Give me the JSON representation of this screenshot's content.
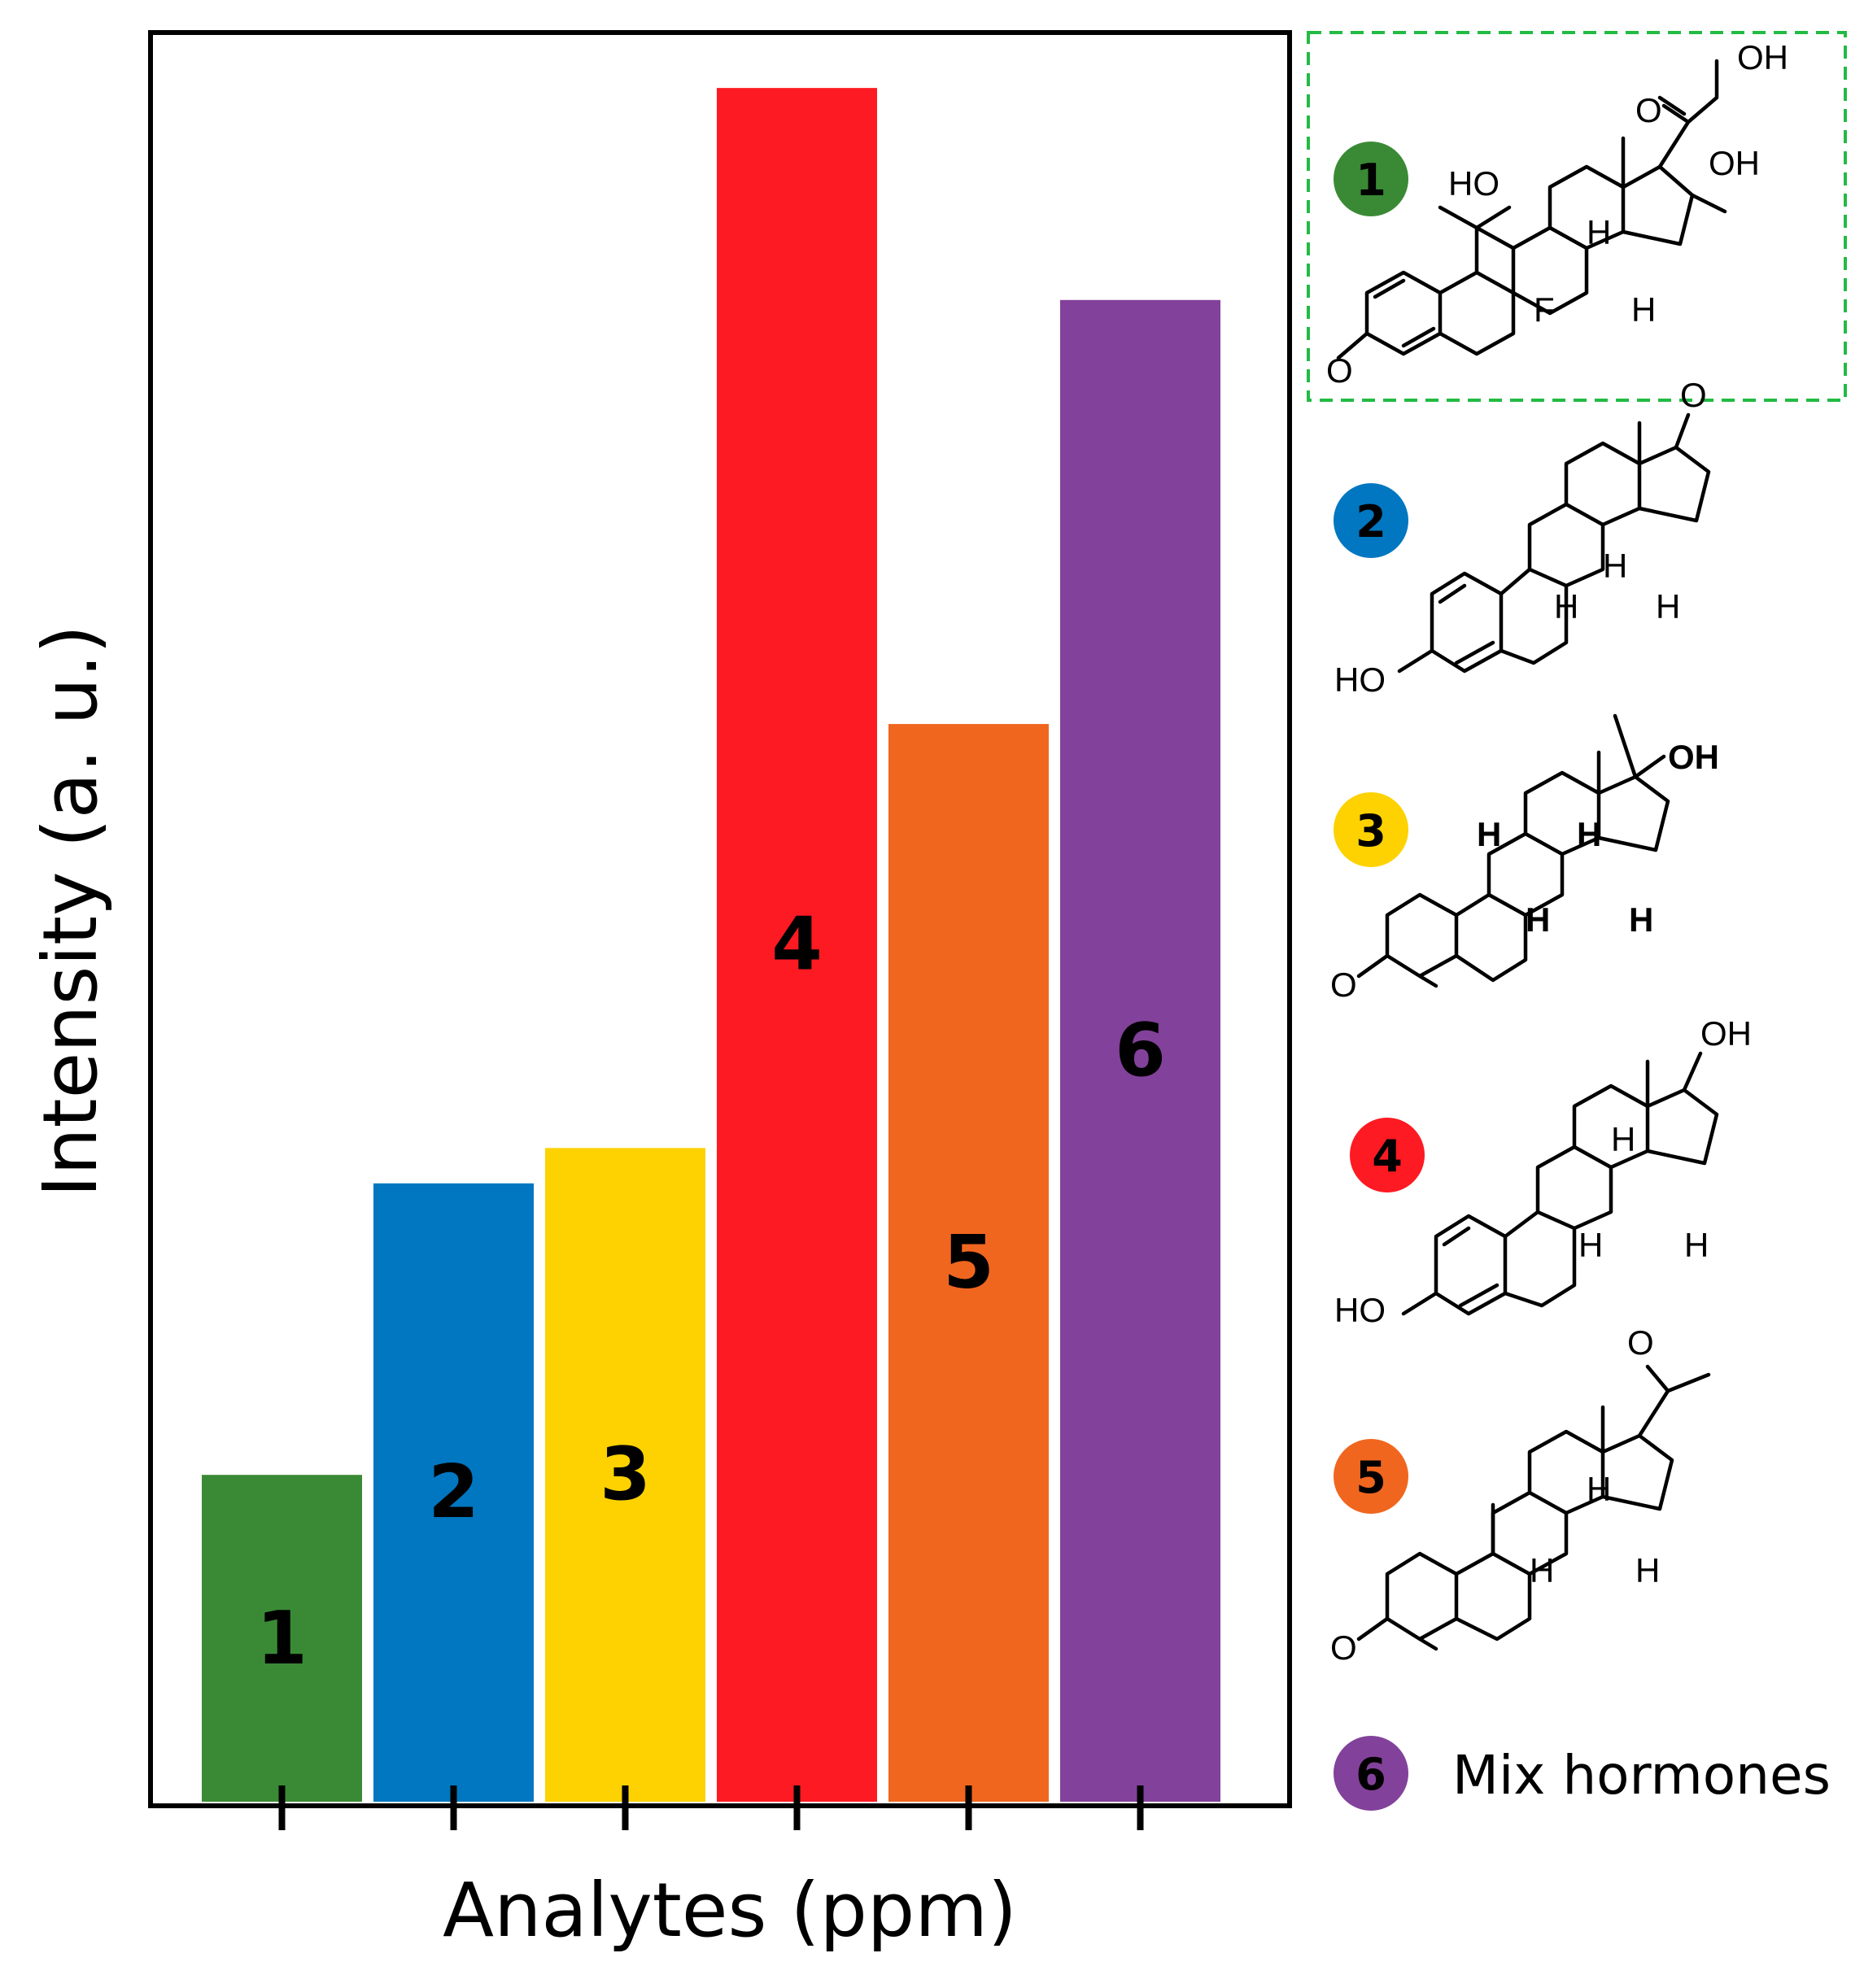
{
  "chart_data": {
    "type": "bar",
    "title": "",
    "xlabel": "Analytes (ppm)",
    "ylabel": "Intensity (a. u.)",
    "ylim": [
      0,
      100
    ],
    "grid": false,
    "legend": "right",
    "categories": [
      "1",
      "2",
      "3",
      "4",
      "5",
      "6"
    ],
    "values": [
      18.5,
      35,
      37,
      97,
      61,
      85
    ],
    "colors": [
      "#3a8a35",
      "#0077c0",
      "#fdd200",
      "#fe1a22",
      "#f0661f",
      "#82419a"
    ],
    "tick_labels_shown": false
  },
  "legend_entries": [
    {
      "num": "1",
      "color": "#3a8a35",
      "text": "",
      "highlighted": true
    },
    {
      "num": "2",
      "color": "#0077c0",
      "text": ""
    },
    {
      "num": "3",
      "color": "#fdd200",
      "text": ""
    },
    {
      "num": "4",
      "color": "#fe1a22",
      "text": ""
    },
    {
      "num": "5",
      "color": "#f0661f",
      "text": ""
    },
    {
      "num": "6",
      "color": "#82419a",
      "text": "Mix hormones"
    }
  ],
  "structure_labels": {
    "ho": "HO",
    "oh": "OH",
    "o": "O",
    "h": "H",
    "f": "F"
  },
  "highlight_color": "#22bb44"
}
